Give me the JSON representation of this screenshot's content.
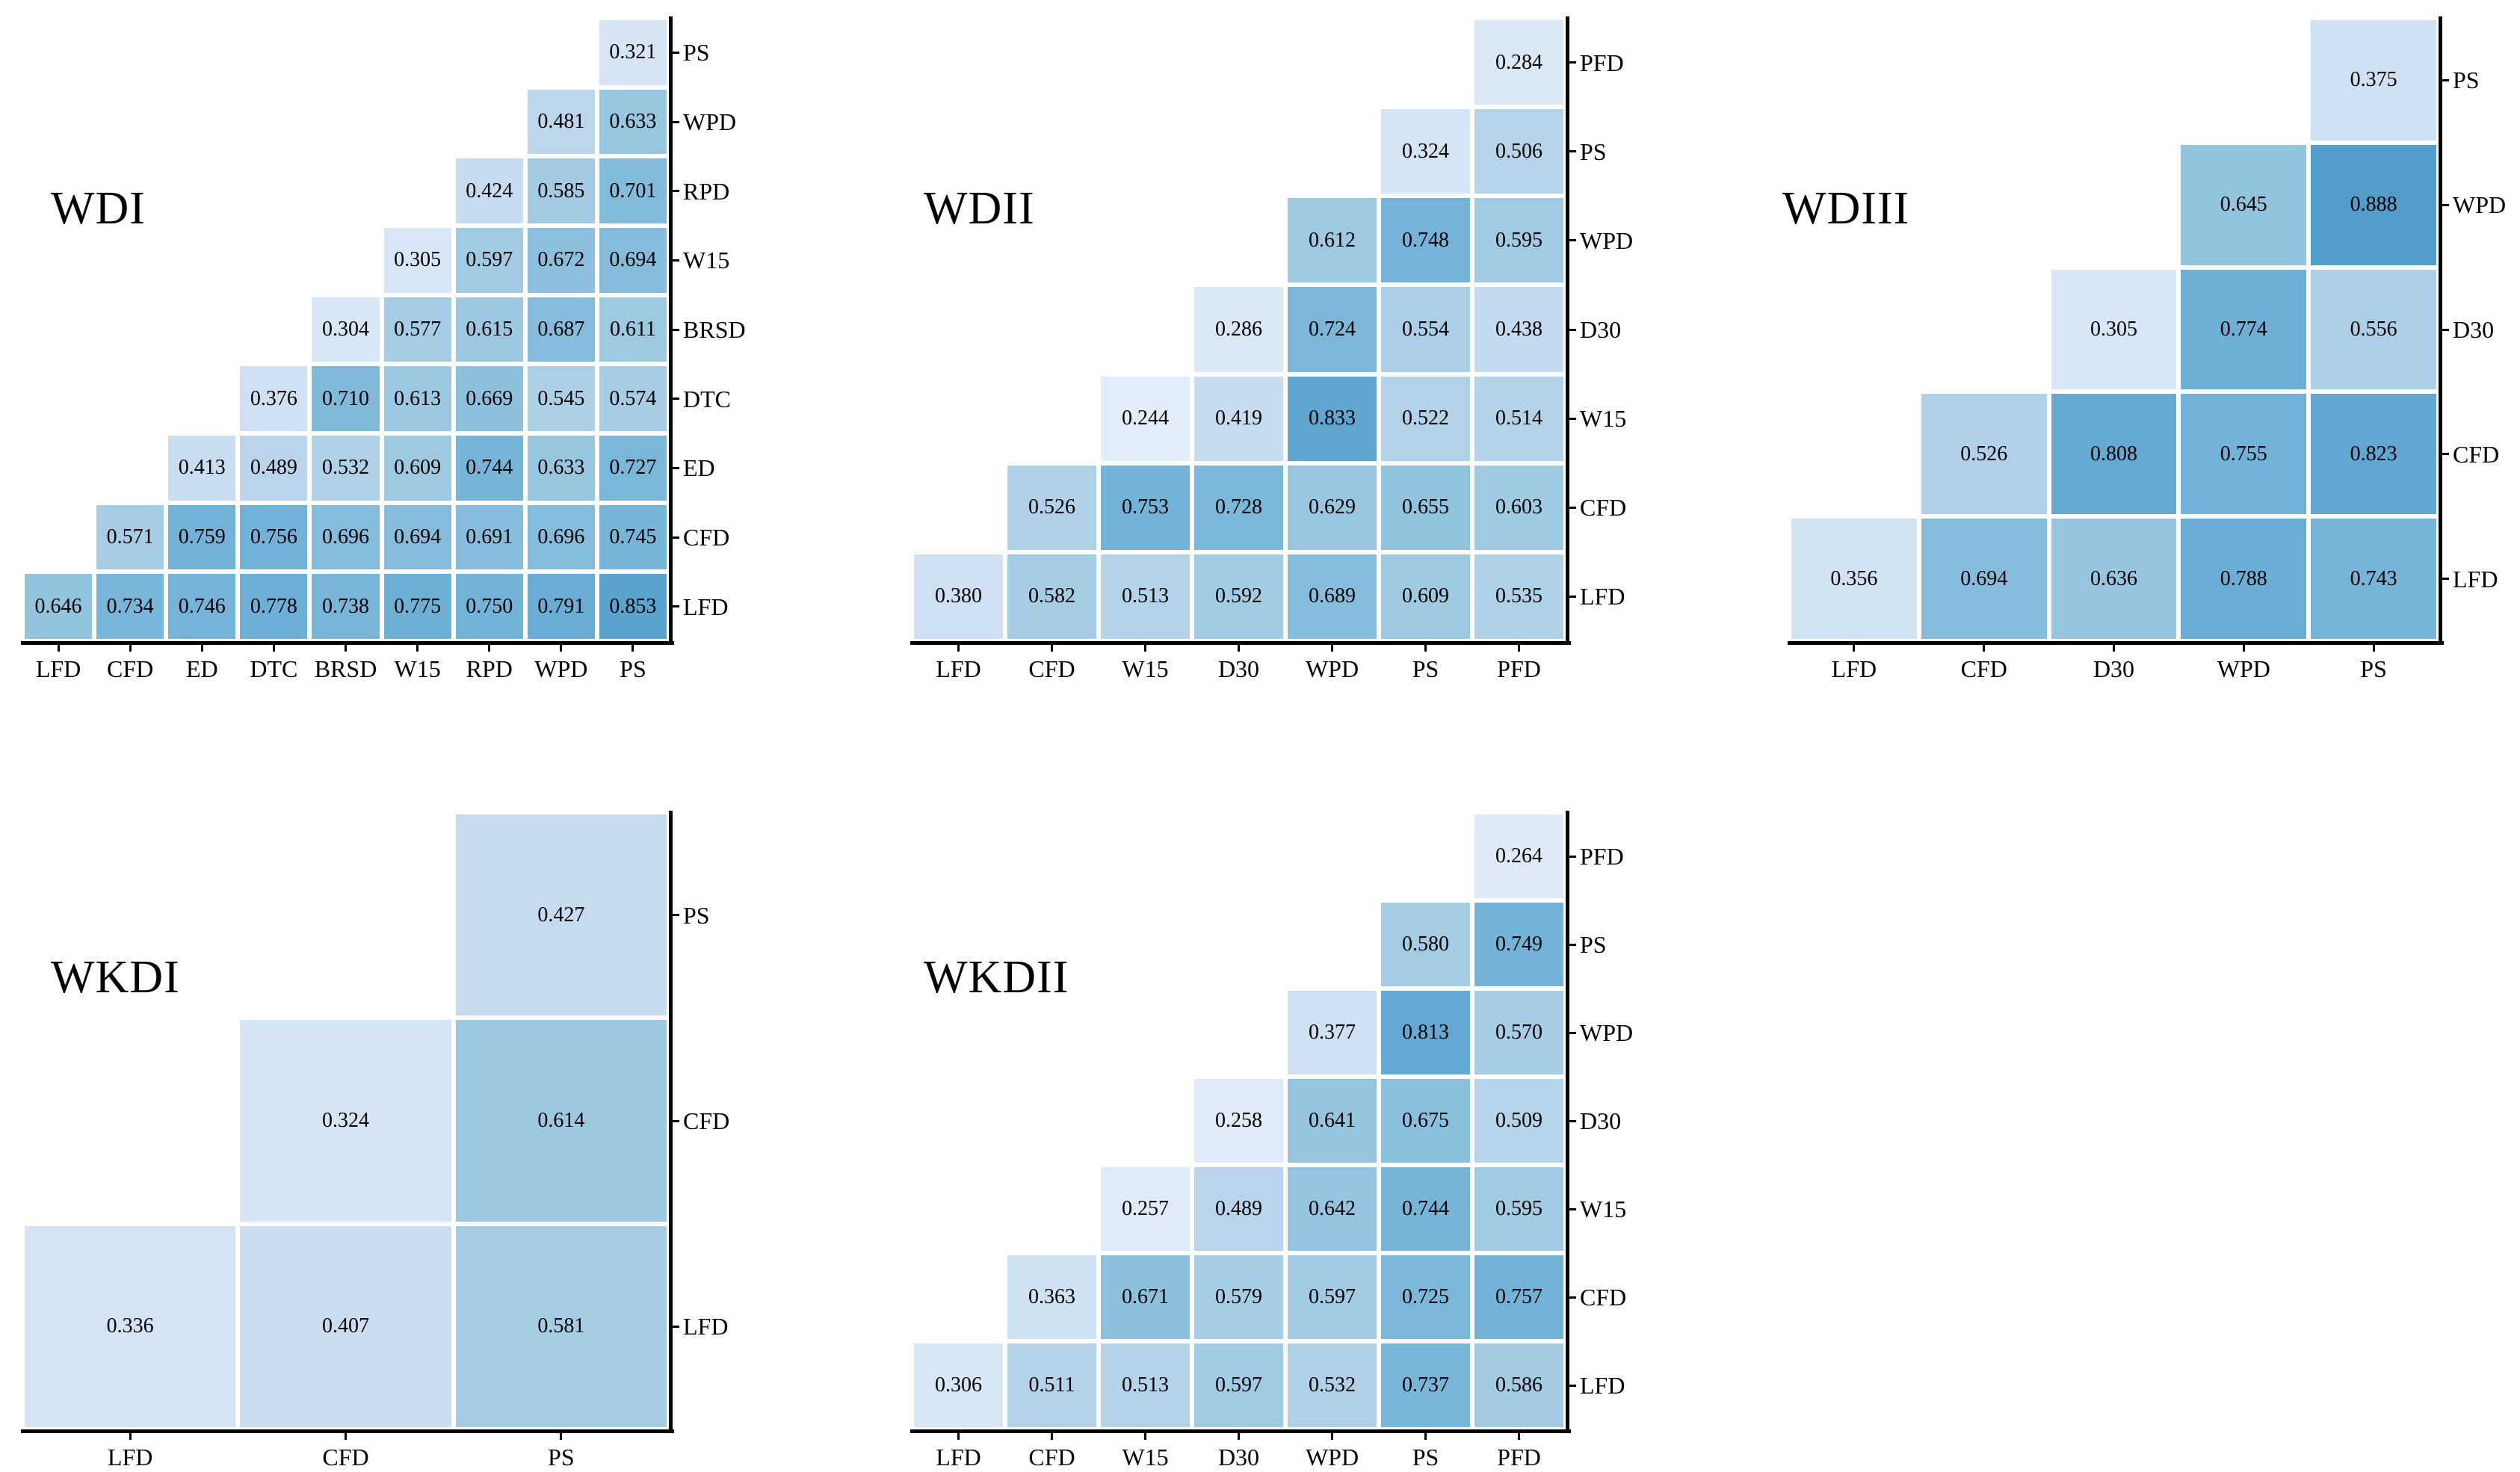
{
  "figure": {
    "background": "#ffffff",
    "text_color": "#000000",
    "value_decimals": 3
  },
  "colormap": {
    "name": "Blues",
    "stops": [
      {
        "v": 0.2,
        "c": "#e7f1fa"
      },
      {
        "v": 0.25,
        "c": "#e0ecf8"
      },
      {
        "v": 0.3,
        "c": "#d9e7f5"
      },
      {
        "v": 0.35,
        "c": "#d2e3f3"
      },
      {
        "v": 0.4,
        "c": "#cbdef1"
      },
      {
        "v": 0.45,
        "c": "#c3d9ee"
      },
      {
        "v": 0.5,
        "c": "#b7d4ea"
      },
      {
        "v": 0.55,
        "c": "#abcfe6"
      },
      {
        "v": 0.6,
        "c": "#a0cbe2"
      },
      {
        "v": 0.65,
        "c": "#92c3de"
      },
      {
        "v": 0.7,
        "c": "#83bbdb"
      },
      {
        "v": 0.75,
        "c": "#74b3d8"
      },
      {
        "v": 0.8,
        "c": "#67abd4"
      },
      {
        "v": 0.85,
        "c": "#5ba3cf"
      },
      {
        "v": 0.9,
        "c": "#4f9bcb"
      },
      {
        "v": 0.95,
        "c": "#4493c4"
      }
    ]
  },
  "chart_data": [
    {
      "type": "heatmap",
      "title": "WDI",
      "x_labels": [
        "LFD",
        "CFD",
        "ED",
        "DTC",
        "BRSD",
        "W15",
        "RPD",
        "WPD",
        "PS"
      ],
      "y_labels_top_to_bottom": [
        "PS",
        "WPD",
        "RPD",
        "W15",
        "BRSD",
        "DTC",
        "ED",
        "CFD",
        "LFD"
      ],
      "rows_top_to_bottom": [
        [
          0.321
        ],
        [
          0.481,
          0.633
        ],
        [
          0.424,
          0.585,
          0.701
        ],
        [
          0.305,
          0.597,
          0.672,
          0.694
        ],
        [
          0.304,
          0.577,
          0.615,
          0.687,
          0.611
        ],
        [
          0.376,
          0.71,
          0.613,
          0.669,
          0.545,
          0.574
        ],
        [
          0.413,
          0.489,
          0.532,
          0.609,
          0.744,
          0.633,
          0.727
        ],
        [
          0.571,
          0.759,
          0.756,
          0.696,
          0.694,
          0.691,
          0.696,
          0.745
        ],
        [
          0.646,
          0.734,
          0.746,
          0.778,
          0.738,
          0.775,
          0.75,
          0.791,
          0.853
        ]
      ]
    },
    {
      "type": "heatmap",
      "title": "WDII",
      "x_labels": [
        "LFD",
        "CFD",
        "W15",
        "D30",
        "WPD",
        "PS",
        "PFD"
      ],
      "y_labels_top_to_bottom": [
        "PFD",
        "PS",
        "WPD",
        "D30",
        "W15",
        "CFD",
        "LFD"
      ],
      "rows_top_to_bottom": [
        [
          0.284
        ],
        [
          0.324,
          0.506
        ],
        [
          0.612,
          0.748,
          0.595
        ],
        [
          0.286,
          0.724,
          0.554,
          0.438
        ],
        [
          0.244,
          0.419,
          0.833,
          0.522,
          0.514
        ],
        [
          0.526,
          0.753,
          0.728,
          0.629,
          0.655,
          0.603
        ],
        [
          0.38,
          0.582,
          0.513,
          0.592,
          0.689,
          0.609,
          0.535
        ]
      ]
    },
    {
      "type": "heatmap",
      "title": "WDIII",
      "x_labels": [
        "LFD",
        "CFD",
        "D30",
        "WPD",
        "PS"
      ],
      "y_labels_top_to_bottom": [
        "PS",
        "WPD",
        "D30",
        "CFD",
        "LFD"
      ],
      "rows_top_to_bottom": [
        [
          0.375
        ],
        [
          0.645,
          0.888
        ],
        [
          0.305,
          0.774,
          0.556
        ],
        [
          0.526,
          0.808,
          0.755,
          0.823
        ],
        [
          0.356,
          0.694,
          0.636,
          0.788,
          0.743
        ]
      ]
    },
    {
      "type": "heatmap",
      "title": "WKDI",
      "x_labels": [
        "LFD",
        "CFD",
        "PS"
      ],
      "y_labels_top_to_bottom": [
        "PS",
        "CFD",
        "LFD"
      ],
      "rows_top_to_bottom": [
        [
          0.427
        ],
        [
          0.324,
          0.614
        ],
        [
          0.336,
          0.407,
          0.581
        ]
      ]
    },
    {
      "type": "heatmap",
      "title": "WKDII",
      "x_labels": [
        "LFD",
        "CFD",
        "W15",
        "D30",
        "WPD",
        "PS",
        "PFD"
      ],
      "y_labels_top_to_bottom": [
        "PFD",
        "PS",
        "WPD",
        "D30",
        "W15",
        "CFD",
        "LFD"
      ],
      "rows_top_to_bottom": [
        [
          0.264
        ],
        [
          0.58,
          0.749
        ],
        [
          0.377,
          0.813,
          0.57
        ],
        [
          0.258,
          0.641,
          0.675,
          0.509
        ],
        [
          0.257,
          0.489,
          0.642,
          0.744,
          0.595
        ],
        [
          0.363,
          0.671,
          0.579,
          0.597,
          0.725,
          0.757
        ],
        [
          0.306,
          0.511,
          0.513,
          0.597,
          0.532,
          0.737,
          0.586
        ]
      ]
    }
  ]
}
